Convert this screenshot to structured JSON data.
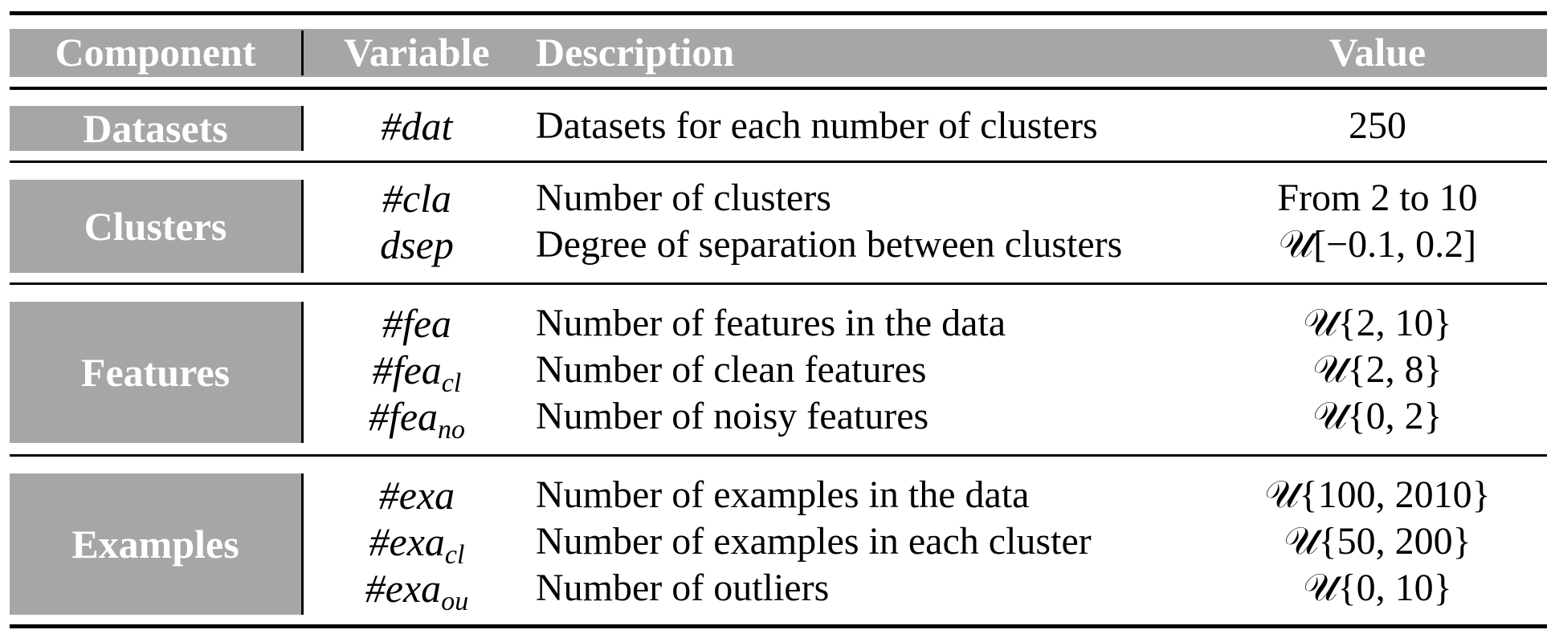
{
  "header": {
    "component": "Component",
    "variable": "Variable",
    "description": "Description",
    "value": "Value"
  },
  "groups": [
    {
      "component": "Datasets",
      "rows": [
        {
          "var": "#dat",
          "sub": "",
          "description": "Datasets for each number of clusters",
          "value": "250"
        }
      ]
    },
    {
      "component": "Clusters",
      "rows": [
        {
          "var": "#cla",
          "sub": "",
          "description": "Number of clusters",
          "value": "From 2 to 10"
        },
        {
          "var": "dsep",
          "sub": "",
          "description": "Degree of separation between clusters",
          "value": "𝒰[−0.1, 0.2]"
        }
      ]
    },
    {
      "component": "Features",
      "rows": [
        {
          "var": "#fea",
          "sub": "",
          "description": "Number of features in the data",
          "value": "𝒰{2, 10}"
        },
        {
          "var": "#fea",
          "sub": "cl",
          "description": "Number of clean features",
          "value": "𝒰{2, 8}"
        },
        {
          "var": "#fea",
          "sub": "no",
          "description": "Number of noisy features",
          "value": "𝒰{0, 2}"
        }
      ]
    },
    {
      "component": "Examples",
      "rows": [
        {
          "var": "#exa",
          "sub": "",
          "description": "Number of examples in the data",
          "value": "𝒰{100, 2010}"
        },
        {
          "var": "#exa",
          "sub": "cl",
          "description": "Number of examples in each cluster",
          "value": "𝒰{50, 200}"
        },
        {
          "var": "#exa",
          "sub": "ou",
          "description": "Number of outliers",
          "value": "𝒰{0, 10}"
        }
      ]
    }
  ]
}
